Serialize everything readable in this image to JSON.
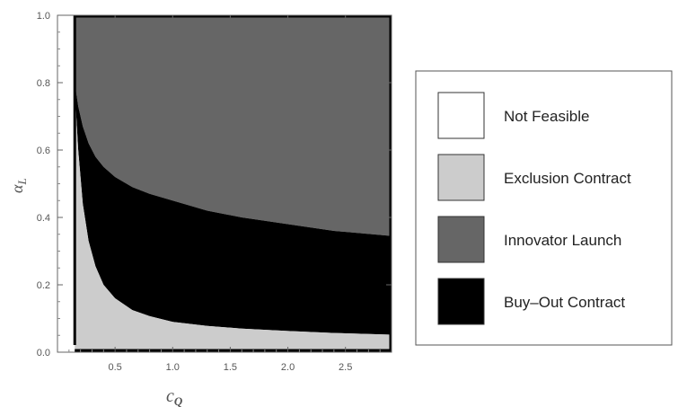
{
  "chart_data": {
    "type": "area",
    "title": "",
    "xlabel": {
      "main": "c",
      "sub": "Q"
    },
    "ylabel": {
      "main": "α",
      "sub": "L"
    },
    "xlim": [
      0.0,
      2.9
    ],
    "ylim": [
      0.0,
      1.0
    ],
    "x_ticks": [
      0.5,
      1.0,
      1.5,
      2.0,
      2.5
    ],
    "x_tick_labels": [
      "0.5",
      "1.0",
      "1.5",
      "2.0",
      "2.5"
    ],
    "y_ticks": [
      0.0,
      0.2,
      0.4,
      0.6,
      0.8,
      1.0
    ],
    "y_tick_labels": [
      "0.0",
      "0.2",
      "0.4",
      "0.6",
      "0.8",
      "1.0"
    ],
    "grid": false,
    "legend_position": "right",
    "not_feasible_below_x": 0.15,
    "boundaries": {
      "exclusion_upper": {
        "x": [
          0.15,
          0.18,
          0.22,
          0.27,
          0.33,
          0.4,
          0.5,
          0.65,
          0.8,
          1.0,
          1.3,
          1.6,
          2.0,
          2.4,
          2.9
        ],
        "y": [
          0.78,
          0.6,
          0.44,
          0.33,
          0.255,
          0.2,
          0.16,
          0.125,
          0.107,
          0.09,
          0.078,
          0.07,
          0.063,
          0.057,
          0.052
        ]
      },
      "buyout_upper": {
        "x": [
          0.15,
          0.18,
          0.22,
          0.27,
          0.33,
          0.4,
          0.5,
          0.65,
          0.8,
          1.0,
          1.3,
          1.6,
          2.0,
          2.4,
          2.9
        ],
        "y": [
          0.8,
          0.73,
          0.67,
          0.62,
          0.58,
          0.55,
          0.52,
          0.49,
          0.47,
          0.45,
          0.42,
          0.4,
          0.38,
          0.36,
          0.345
        ]
      }
    },
    "series": [
      {
        "name": "Not Feasible",
        "color": "#ffffff"
      },
      {
        "name": "Exclusion Contract",
        "color": "#cccccc"
      },
      {
        "name": "Innovator Launch",
        "color": "#666666"
      },
      {
        "name": "Buy–Out Contract",
        "color": "#000000"
      }
    ]
  }
}
